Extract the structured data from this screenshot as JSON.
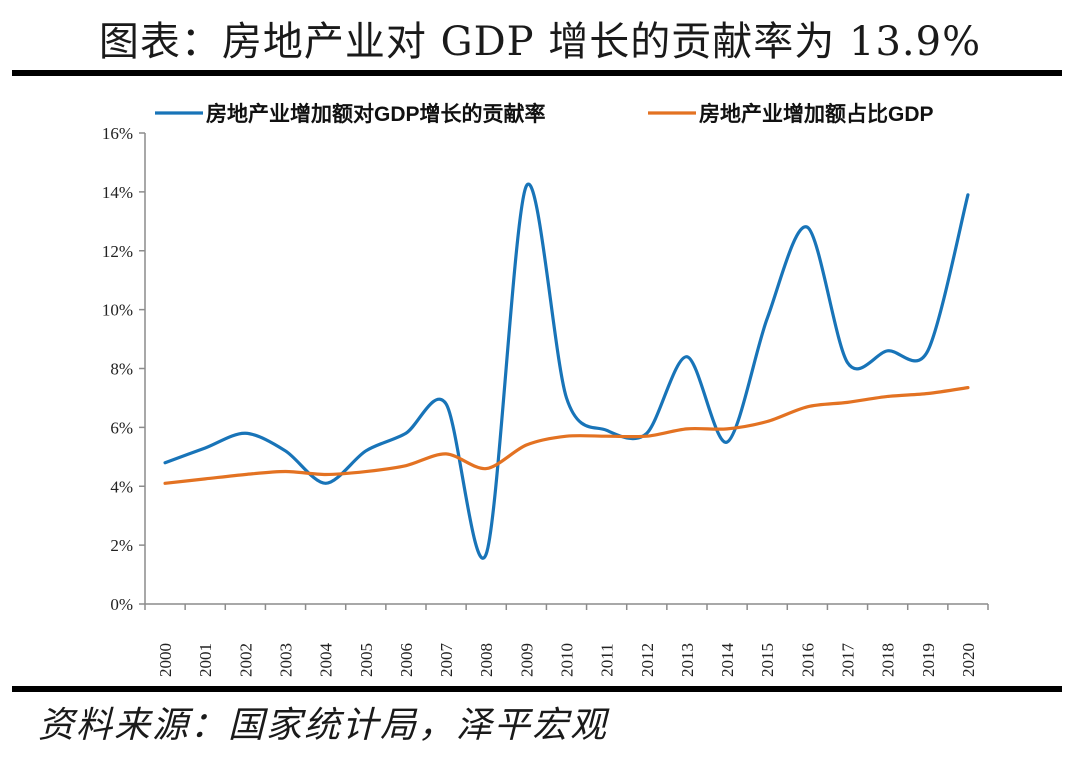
{
  "title": "图表：房地产业对 GDP 增长的贡献率为 13.9%",
  "source": "资料来源：国家统计局，泽平宏观",
  "colors": {
    "contribution": "#1874b8",
    "share": "#e37222",
    "axis": "#8c8c8c"
  },
  "chart_data": {
    "type": "line",
    "categories": [
      "2000",
      "2001",
      "2002",
      "2003",
      "2004",
      "2005",
      "2006",
      "2007",
      "2008",
      "2009",
      "2010",
      "2011",
      "2012",
      "2013",
      "2014",
      "2015",
      "2016",
      "2017",
      "2018",
      "2019",
      "2020"
    ],
    "series": [
      {
        "name": "房地产业增加额对GDP增长的贡献率",
        "values": [
          4.8,
          5.3,
          5.8,
          5.2,
          4.1,
          5.2,
          5.8,
          6.8,
          1.7,
          14.2,
          7.0,
          5.9,
          5.8,
          8.4,
          5.5,
          9.7,
          12.8,
          8.2,
          8.6,
          8.6,
          13.9
        ]
      },
      {
        "name": "房地产业增加额占比GDP",
        "values": [
          4.1,
          4.25,
          4.4,
          4.5,
          4.4,
          4.5,
          4.7,
          5.1,
          4.6,
          5.4,
          5.7,
          5.7,
          5.7,
          5.95,
          5.95,
          6.2,
          6.7,
          6.85,
          7.05,
          7.15,
          7.35
        ]
      }
    ],
    "ylim": [
      0,
      16
    ],
    "yticks": [
      "0%",
      "2%",
      "4%",
      "6%",
      "8%",
      "10%",
      "12%",
      "14%",
      "16%"
    ],
    "legend_position": "top"
  }
}
